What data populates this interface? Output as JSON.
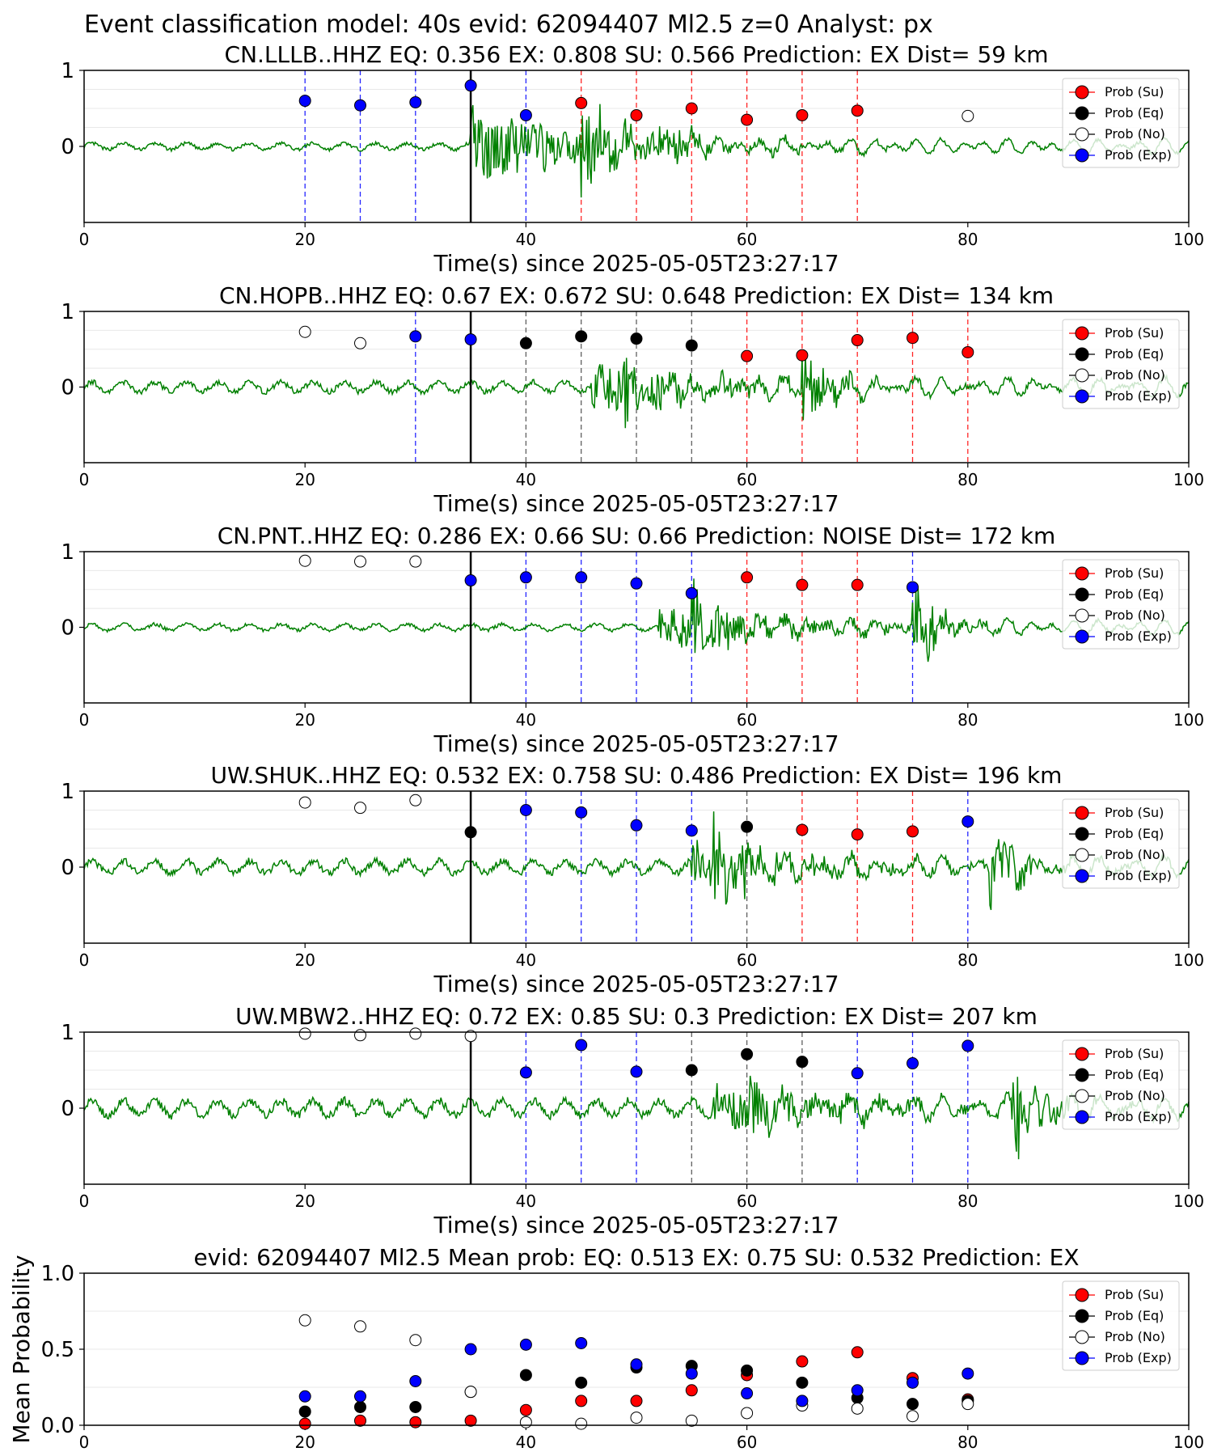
{
  "suptitle": "Event classification model: 40s evid: 62094407 Ml2.5 z=0 Analyst: px",
  "legend": [
    {
      "label": "Prob (Su)",
      "color": "#ff0000",
      "fill": true
    },
    {
      "label": "Prob (Eq)",
      "color": "#000000",
      "fill": true
    },
    {
      "label": "Prob (No)",
      "color": "#ffffff",
      "fill": false
    },
    {
      "label": "Prob (Exp)",
      "color": "#0000ff",
      "fill": true
    }
  ],
  "colors": {
    "su": "#ff0000",
    "eq": "#000000",
    "no": "#ffffff",
    "exp": "#0000ff",
    "waveform": "#008000",
    "origin_line": "#000000"
  },
  "chart_data": [
    {
      "type": "scatter",
      "title": "CN.LLLB..HHZ   EQ: 0.356  EX: 0.808  SU: 0.566   Prediction: EX    Dist= 59 km",
      "xlabel": "Time(s) since 2025-05-05T23:27:17",
      "xlim": [
        0,
        100
      ],
      "ylim": [
        -1,
        1
      ],
      "xticks": [
        "0",
        "20",
        "40",
        "60",
        "80",
        "100"
      ],
      "yticks": [
        "0",
        "1"
      ],
      "origin_time": 35,
      "waveform": {
        "color": "#008000",
        "onset": 35,
        "amplitude": 0.5,
        "pre_amplitude": 0.05,
        "bursts": [
          {
            "t": 45,
            "amp": 0.6
          },
          {
            "t": 52,
            "amp": 0.35
          }
        ]
      },
      "points": [
        {
          "x": 20,
          "y": 0.6,
          "class": "exp"
        },
        {
          "x": 25,
          "y": 0.54,
          "class": "exp"
        },
        {
          "x": 30,
          "y": 0.58,
          "class": "exp"
        },
        {
          "x": 35,
          "y": 0.8,
          "class": "exp"
        },
        {
          "x": 40,
          "y": 0.41,
          "class": "exp"
        },
        {
          "x": 45,
          "y": 0.57,
          "class": "su"
        },
        {
          "x": 50,
          "y": 0.41,
          "class": "su"
        },
        {
          "x": 55,
          "y": 0.5,
          "class": "su"
        },
        {
          "x": 60,
          "y": 0.35,
          "class": "su"
        },
        {
          "x": 65,
          "y": 0.41,
          "class": "su"
        },
        {
          "x": 70,
          "y": 0.47,
          "class": "su"
        },
        {
          "x": 80,
          "y": 0.4,
          "class": "no"
        }
      ]
    },
    {
      "type": "scatter",
      "title": "CN.HOPB..HHZ   EQ: 0.67  EX: 0.672  SU: 0.648   Prediction: EX    Dist= 134 km",
      "xlabel": "Time(s) since 2025-05-05T23:27:17",
      "xlim": [
        0,
        100
      ],
      "ylim": [
        -1,
        1
      ],
      "xticks": [
        "0",
        "20",
        "40",
        "60",
        "80",
        "100"
      ],
      "yticks": [
        "0",
        "1"
      ],
      "origin_time": 35,
      "waveform": {
        "color": "#008000",
        "onset": 46,
        "amplitude": 0.35,
        "pre_amplitude": 0.08,
        "bursts": [
          {
            "t": 49,
            "amp": 0.45
          },
          {
            "t": 65,
            "amp": 0.5
          }
        ]
      },
      "points": [
        {
          "x": 20,
          "y": 0.73,
          "class": "no"
        },
        {
          "x": 25,
          "y": 0.58,
          "class": "no"
        },
        {
          "x": 30,
          "y": 0.67,
          "class": "exp"
        },
        {
          "x": 35,
          "y": 0.63,
          "class": "exp"
        },
        {
          "x": 40,
          "y": 0.58,
          "class": "eq"
        },
        {
          "x": 45,
          "y": 0.67,
          "class": "eq"
        },
        {
          "x": 50,
          "y": 0.64,
          "class": "eq"
        },
        {
          "x": 55,
          "y": 0.55,
          "class": "eq"
        },
        {
          "x": 60,
          "y": 0.41,
          "class": "su"
        },
        {
          "x": 65,
          "y": 0.42,
          "class": "su"
        },
        {
          "x": 70,
          "y": 0.62,
          "class": "su"
        },
        {
          "x": 75,
          "y": 0.65,
          "class": "su"
        },
        {
          "x": 80,
          "y": 0.46,
          "class": "su"
        }
      ]
    },
    {
      "type": "scatter",
      "title": "CN.PNT..HHZ   EQ: 0.286  EX: 0.66  SU: 0.66   Prediction: NOISE    Dist= 172 km",
      "xlabel": "Time(s) since 2025-05-05T23:27:17",
      "xlim": [
        0,
        100
      ],
      "ylim": [
        -1,
        1
      ],
      "xticks": [
        "0",
        "20",
        "40",
        "60",
        "80",
        "100"
      ],
      "yticks": [
        "0",
        "1"
      ],
      "origin_time": 35,
      "waveform": {
        "color": "#008000",
        "onset": 52,
        "amplitude": 0.3,
        "pre_amplitude": 0.05,
        "bursts": [
          {
            "t": 55,
            "amp": 0.5
          },
          {
            "t": 75,
            "amp": 0.55
          }
        ]
      },
      "points": [
        {
          "x": 20,
          "y": 0.88,
          "class": "no"
        },
        {
          "x": 25,
          "y": 0.87,
          "class": "no"
        },
        {
          "x": 30,
          "y": 0.87,
          "class": "no"
        },
        {
          "x": 35,
          "y": 0.62,
          "class": "exp"
        },
        {
          "x": 40,
          "y": 0.66,
          "class": "exp"
        },
        {
          "x": 45,
          "y": 0.66,
          "class": "exp"
        },
        {
          "x": 50,
          "y": 0.58,
          "class": "exp"
        },
        {
          "x": 55,
          "y": 0.45,
          "class": "exp"
        },
        {
          "x": 60,
          "y": 0.66,
          "class": "su"
        },
        {
          "x": 65,
          "y": 0.56,
          "class": "su"
        },
        {
          "x": 70,
          "y": 0.56,
          "class": "su"
        },
        {
          "x": 75,
          "y": 0.53,
          "class": "exp"
        }
      ]
    },
    {
      "type": "scatter",
      "title": "UW.SHUK..HHZ   EQ: 0.532  EX: 0.758  SU: 0.486   Prediction: EX    Dist= 196 km",
      "xlabel": "Time(s) since 2025-05-05T23:27:17",
      "xlim": [
        0,
        100
      ],
      "ylim": [
        -1,
        1
      ],
      "xticks": [
        "0",
        "20",
        "40",
        "60",
        "80",
        "100"
      ],
      "yticks": [
        "0",
        "1"
      ],
      "origin_time": 35,
      "waveform": {
        "color": "#008000",
        "onset": 55,
        "amplitude": 0.3,
        "pre_amplitude": 0.1,
        "bursts": [
          {
            "t": 57,
            "amp": 0.55
          },
          {
            "t": 82,
            "amp": 0.5
          }
        ]
      },
      "points": [
        {
          "x": 20,
          "y": 0.85,
          "class": "no"
        },
        {
          "x": 25,
          "y": 0.78,
          "class": "no"
        },
        {
          "x": 30,
          "y": 0.88,
          "class": "no"
        },
        {
          "x": 35,
          "y": 0.46,
          "class": "eq"
        },
        {
          "x": 40,
          "y": 0.75,
          "class": "exp"
        },
        {
          "x": 45,
          "y": 0.72,
          "class": "exp"
        },
        {
          "x": 50,
          "y": 0.55,
          "class": "exp"
        },
        {
          "x": 55,
          "y": 0.48,
          "class": "exp"
        },
        {
          "x": 60,
          "y": 0.53,
          "class": "eq"
        },
        {
          "x": 65,
          "y": 0.49,
          "class": "su"
        },
        {
          "x": 70,
          "y": 0.43,
          "class": "su"
        },
        {
          "x": 75,
          "y": 0.47,
          "class": "su"
        },
        {
          "x": 80,
          "y": 0.6,
          "class": "exp"
        }
      ]
    },
    {
      "type": "scatter",
      "title": "UW.MBW2..HHZ   EQ: 0.72  EX: 0.85  SU: 0.3   Prediction: EX    Dist= 207 km",
      "xlabel": "Time(s) since 2025-05-05T23:27:17",
      "xlim": [
        0,
        100
      ],
      "ylim": [
        -1,
        1
      ],
      "xticks": [
        "0",
        "20",
        "40",
        "60",
        "80",
        "100"
      ],
      "yticks": [
        "0",
        "1"
      ],
      "origin_time": 35,
      "waveform": {
        "color": "#008000",
        "onset": 57,
        "amplitude": 0.3,
        "pre_amplitude": 0.12,
        "bursts": [
          {
            "t": 60,
            "amp": 0.4
          },
          {
            "t": 84,
            "amp": 0.65
          }
        ]
      },
      "points": [
        {
          "x": 20,
          "y": 0.98,
          "class": "no"
        },
        {
          "x": 25,
          "y": 0.96,
          "class": "no"
        },
        {
          "x": 30,
          "y": 0.98,
          "class": "no"
        },
        {
          "x": 35,
          "y": 0.95,
          "class": "no"
        },
        {
          "x": 40,
          "y": 0.47,
          "class": "exp"
        },
        {
          "x": 45,
          "y": 0.83,
          "class": "exp"
        },
        {
          "x": 50,
          "y": 0.48,
          "class": "exp"
        },
        {
          "x": 55,
          "y": 0.5,
          "class": "eq"
        },
        {
          "x": 60,
          "y": 0.71,
          "class": "eq"
        },
        {
          "x": 65,
          "y": 0.61,
          "class": "eq"
        },
        {
          "x": 70,
          "y": 0.46,
          "class": "exp"
        },
        {
          "x": 75,
          "y": 0.59,
          "class": "exp"
        },
        {
          "x": 80,
          "y": 0.82,
          "class": "exp"
        }
      ]
    },
    {
      "type": "scatter",
      "title": "evid: 62094407  Ml2.5   Mean prob:   EQ: 0.513  EX: 0.75  SU: 0.532   Prediction: EX",
      "ylabel": "Mean Probability",
      "xlim": [
        0,
        100
      ],
      "ylim": [
        0,
        1
      ],
      "xticks": [
        "0",
        "20",
        "40",
        "60",
        "80",
        "100"
      ],
      "yticks": [
        "0.0",
        "0.5",
        "1.0"
      ],
      "x": [
        20,
        25,
        30,
        35,
        40,
        45,
        50,
        55,
        60,
        65,
        70,
        75,
        80
      ],
      "series": [
        {
          "name": "Prob (Su)",
          "class": "su",
          "values": [
            0.01,
            0.03,
            0.02,
            0.03,
            0.1,
            0.16,
            0.16,
            0.23,
            0.33,
            0.42,
            0.48,
            0.31,
            0.17
          ]
        },
        {
          "name": "Prob (Eq)",
          "class": "eq",
          "values": [
            0.09,
            0.12,
            0.12,
            0.22,
            0.33,
            0.28,
            0.38,
            0.39,
            0.36,
            0.28,
            0.18,
            0.14,
            0.16
          ]
        },
        {
          "name": "Prob (No)",
          "class": "no",
          "values": [
            0.69,
            0.65,
            0.56,
            0.22,
            0.02,
            0.01,
            0.05,
            0.03,
            0.08,
            0.13,
            0.11,
            0.06,
            0.14
          ]
        },
        {
          "name": "Prob (Exp)",
          "class": "exp",
          "values": [
            0.19,
            0.19,
            0.29,
            0.5,
            0.53,
            0.54,
            0.4,
            0.34,
            0.21,
            0.16,
            0.23,
            0.28,
            0.34
          ]
        }
      ]
    }
  ]
}
